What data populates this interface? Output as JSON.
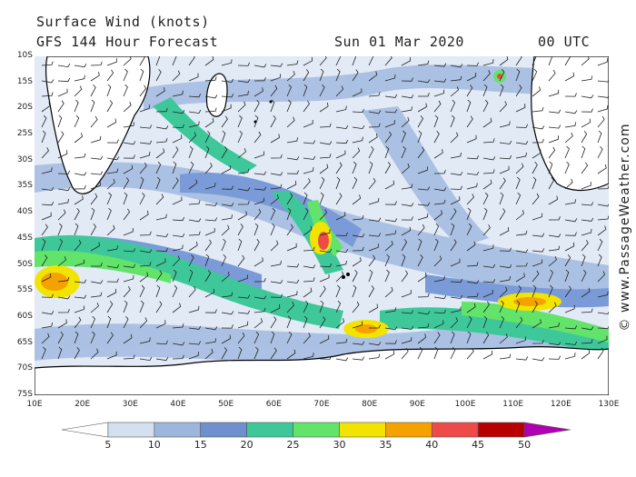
{
  "header": {
    "title_line1": "Surface Wind (knots)",
    "title_line2": "GFS 144 Hour Forecast",
    "date": "Sun 01 Mar 2020",
    "time": "00 UTC"
  },
  "credit": "© www.PassageWeather.com",
  "axes": {
    "lat_labels": [
      "10S",
      "15S",
      "20S",
      "25S",
      "30S",
      "35S",
      "40S",
      "45S",
      "50S",
      "55S",
      "60S",
      "65S",
      "70S",
      "75S"
    ],
    "lon_labels": [
      "10E",
      "20E",
      "30E",
      "40E",
      "50E",
      "60E",
      "70E",
      "80E",
      "90E",
      "100E",
      "110E",
      "120E",
      "130E"
    ]
  },
  "colorbar": {
    "labels": [
      "5",
      "10",
      "15",
      "20",
      "25",
      "30",
      "35",
      "40",
      "45",
      "50"
    ],
    "colors": [
      "#ffffff",
      "#d4e0ef",
      "#9db6dd",
      "#6f90cf",
      "#3ec89a",
      "#62e36a",
      "#f2e400",
      "#f5a100",
      "#ef4a4a",
      "#b80000",
      "#b000b0"
    ]
  },
  "map_colors": {
    "ocean_calm": "#e2eaf6",
    "light": "#a9bfe3",
    "moderate": "#7597d6",
    "teal": "#3ec89a",
    "green": "#62e36a",
    "yellow": "#f2e400",
    "orange": "#f5a100",
    "red": "#ef4a4a",
    "land": "#ffffff",
    "coast": "#000000",
    "barb": "#222222"
  }
}
